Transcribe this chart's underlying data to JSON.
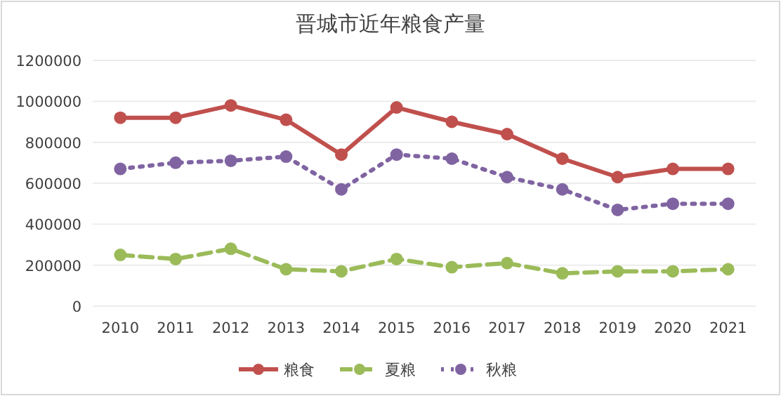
{
  "chart_data": {
    "type": "line",
    "title": "晋城市近年粮食产量",
    "categories": [
      "2010",
      "2011",
      "2012",
      "2013",
      "2014",
      "2015",
      "2016",
      "2017",
      "2018",
      "2019",
      "2020",
      "2021"
    ],
    "series": [
      {
        "name": "粮食",
        "color": "#c0504d",
        "line_style": "solid",
        "values": [
          920000,
          920000,
          980000,
          910000,
          740000,
          970000,
          900000,
          840000,
          720000,
          630000,
          670000,
          670000
        ]
      },
      {
        "name": "夏粮",
        "color": "#9bbb59",
        "line_style": "dashed",
        "values": [
          250000,
          230000,
          280000,
          180000,
          170000,
          230000,
          190000,
          210000,
          160000,
          170000,
          170000,
          180000
        ]
      },
      {
        "name": "秋粮",
        "color": "#8064a2",
        "line_style": "dotted",
        "values": [
          670000,
          700000,
          710000,
          730000,
          570000,
          740000,
          720000,
          630000,
          570000,
          470000,
          500000,
          500000
        ]
      }
    ],
    "ylim": [
      0,
      1200000
    ],
    "yticks": [
      0,
      200000,
      400000,
      600000,
      800000,
      1000000,
      1200000
    ],
    "grid": "y",
    "legend": "bottom",
    "marker": "circle"
  }
}
